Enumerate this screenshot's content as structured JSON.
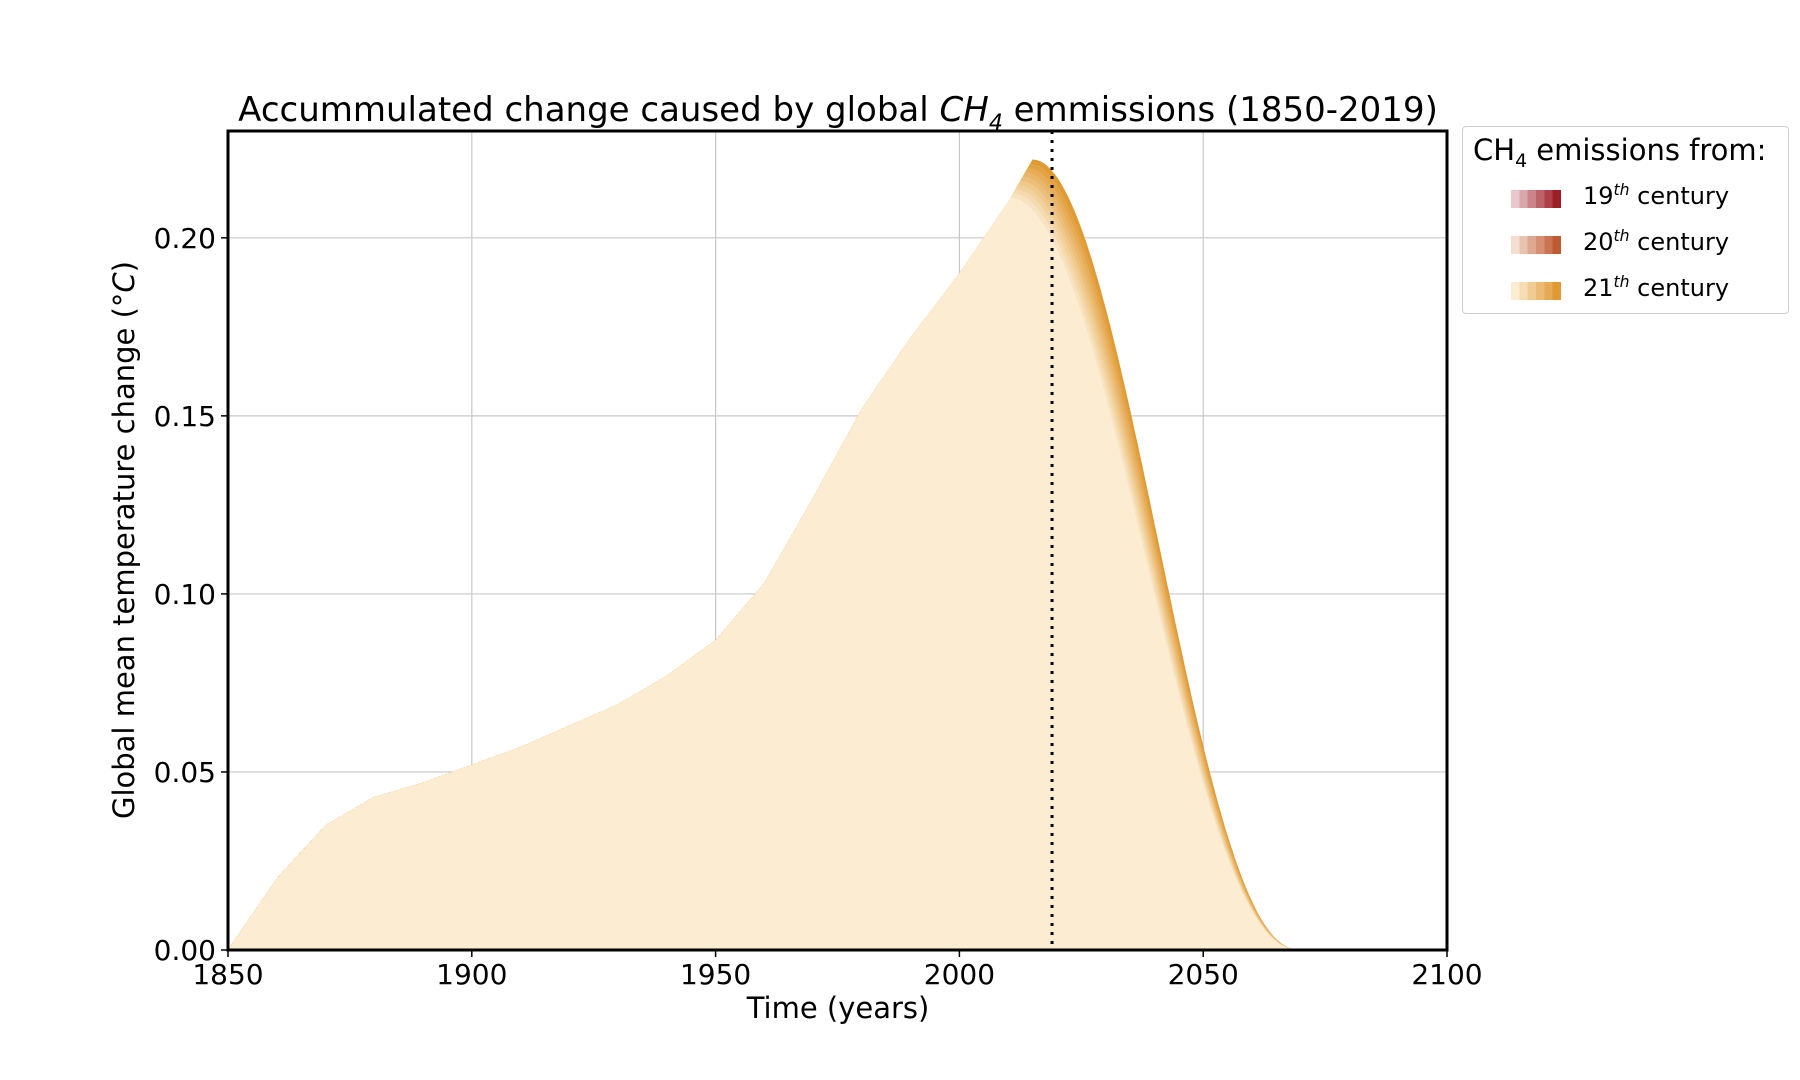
{
  "chart_data": {
    "type": "area",
    "title": "Accummulated change caused by global CH4 emmissions (1850-2019)",
    "title_parts": [
      "Accummulated change caused by global ",
      "CH",
      "4",
      " emmissions (1850-2019)"
    ],
    "xlabel": "Time (years)",
    "ylabel_parts": [
      "Global mean temperature change (°",
      "C",
      ")"
    ],
    "xlim": [
      1850,
      2100
    ],
    "ylim": [
      0,
      0.23
    ],
    "xticks": [
      "1850",
      "1900",
      "1950",
      "2000",
      "2050",
      "2100"
    ],
    "yticks": [
      "0.00",
      "0.05",
      "0.10",
      "0.15",
      "0.20"
    ],
    "grid": true,
    "reference_line_x": 2019,
    "legend": {
      "placement": "outside-right",
      "title_parts": [
        "CH",
        "4",
        " emissions from:"
      ],
      "entries": [
        {
          "number": "19",
          "sup": "th",
          "word": " century",
          "color_light": "#e8c8cc",
          "color_dark": "#9e1e28"
        },
        {
          "number": "20",
          "sup": "th",
          "word": " century",
          "color_light": "#f5ddd0",
          "color_dark": "#bf5b32"
        },
        {
          "number": "21",
          "sup": "th",
          "word": " century",
          "color_light": "#fbecd2",
          "color_dark": "#e09a33"
        }
      ]
    },
    "series": [
      {
        "decade_start": 1850,
        "century": 19,
        "peak_year": 1860,
        "total_at_peak": 0.02
      },
      {
        "decade_start": 1860,
        "century": 19,
        "peak_year": 1870,
        "total_at_peak": 0.035
      },
      {
        "decade_start": 1870,
        "century": 19,
        "peak_year": 1880,
        "total_at_peak": 0.043
      },
      {
        "decade_start": 1880,
        "century": 19,
        "peak_year": 1890,
        "total_at_peak": 0.047
      },
      {
        "decade_start": 1890,
        "century": 19,
        "peak_year": 1900,
        "total_at_peak": 0.052
      },
      {
        "decade_start": 1900,
        "century": 20,
        "peak_year": 1910,
        "total_at_peak": 0.057
      },
      {
        "decade_start": 1910,
        "century": 20,
        "peak_year": 1920,
        "total_at_peak": 0.063
      },
      {
        "decade_start": 1920,
        "century": 20,
        "peak_year": 1930,
        "total_at_peak": 0.069
      },
      {
        "decade_start": 1930,
        "century": 20,
        "peak_year": 1940,
        "total_at_peak": 0.077
      },
      {
        "decade_start": 1940,
        "century": 20,
        "peak_year": 1950,
        "total_at_peak": 0.087
      },
      {
        "decade_start": 1950,
        "century": 20,
        "peak_year": 1960,
        "total_at_peak": 0.103
      },
      {
        "decade_start": 1960,
        "century": 20,
        "peak_year": 1970,
        "total_at_peak": 0.127
      },
      {
        "decade_start": 1970,
        "century": 20,
        "peak_year": 1980,
        "total_at_peak": 0.152
      },
      {
        "decade_start": 1980,
        "century": 20,
        "peak_year": 1990,
        "total_at_peak": 0.172
      },
      {
        "decade_start": 1990,
        "century": 20,
        "peak_year": 2000,
        "total_at_peak": 0.19
      },
      {
        "decade_start": 2000,
        "century": 21,
        "peak_year": 2010,
        "total_at_peak": 0.21
      },
      {
        "decade_start": 2010,
        "century": 21,
        "peak_year": 2015,
        "total_at_peak": 0.222
      }
    ],
    "end_of_response": {
      "zero_by_year": 2070
    }
  }
}
